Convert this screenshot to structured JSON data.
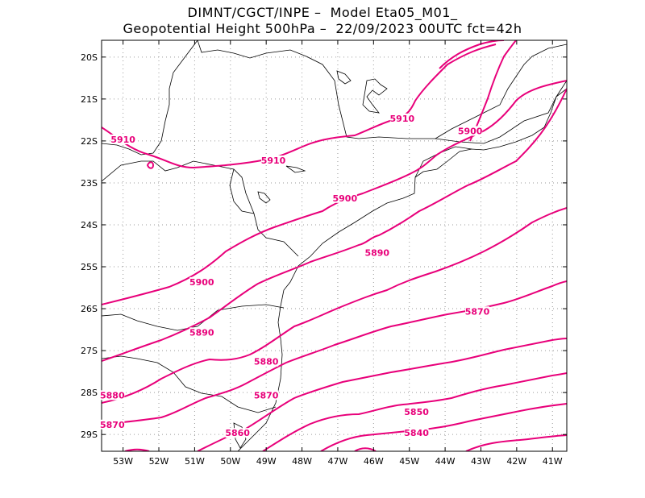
{
  "header": {
    "line1": "DIMNT/CGCT/INPE –  Model Eta05_M01_",
    "line2": "Geopotential Height 500hPa –  22/09/2023 00UTC fct=42h"
  },
  "map": {
    "lon_range": [
      -53.6,
      -40.6
    ],
    "lat_range": [
      -29.4,
      -19.6
    ],
    "lon_ticks": [
      "53W",
      "52W",
      "51W",
      "50W",
      "49W",
      "48W",
      "47W",
      "46W",
      "45W",
      "44W",
      "43W",
      "42W",
      "41W"
    ],
    "lat_ticks": [
      "20S",
      "21S",
      "22S",
      "23S",
      "24S",
      "25S",
      "26S",
      "27S",
      "28S",
      "29S"
    ],
    "grid": true,
    "contour_color": "#e8007a",
    "boundary_color": "#000000"
  },
  "contour_labels": [
    {
      "text": "5910",
      "lon": -53.0,
      "lat": -22.0
    },
    {
      "text": "5910",
      "lon": -48.8,
      "lat": -22.5
    },
    {
      "text": "5910",
      "lon": -45.2,
      "lat": -21.5
    },
    {
      "text": "5900",
      "lon": -43.3,
      "lat": -21.8
    },
    {
      "text": "5900",
      "lon": -46.8,
      "lat": -23.4
    },
    {
      "text": "5900",
      "lon": -50.8,
      "lat": -25.4
    },
    {
      "text": "5890",
      "lon": -50.8,
      "lat": -26.6
    },
    {
      "text": "5890",
      "lon": -45.9,
      "lat": -24.7
    },
    {
      "text": "5880",
      "lon": -49.0,
      "lat": -27.3
    },
    {
      "text": "5880",
      "lon": -53.3,
      "lat": -28.1
    },
    {
      "text": "5870",
      "lon": -49.0,
      "lat": -28.1
    },
    {
      "text": "5870",
      "lon": -53.3,
      "lat": -28.8
    },
    {
      "text": "5870",
      "lon": -43.1,
      "lat": -26.1
    },
    {
      "text": "5860",
      "lon": -49.8,
      "lat": -29.0
    },
    {
      "text": "5850",
      "lon": -44.8,
      "lat": -28.5
    },
    {
      "text": "5840",
      "lon": -44.8,
      "lat": -29.0
    }
  ]
}
